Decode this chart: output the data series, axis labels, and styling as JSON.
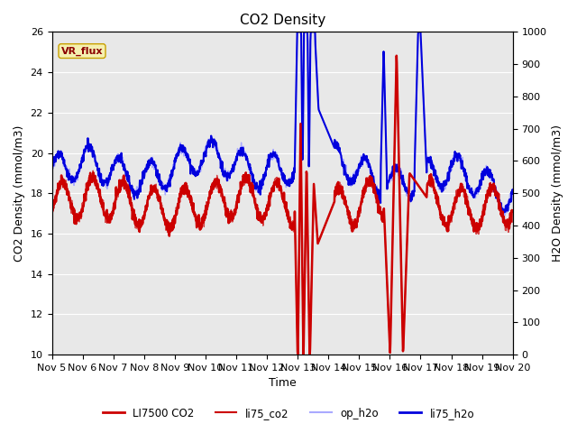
{
  "title": "CO2 Density",
  "xlabel": "Time",
  "ylabel_left": "CO2 Density (mmol/m3)",
  "ylabel_right": "H2O Density (mmol/m3)",
  "ylim_left": [
    10,
    26
  ],
  "ylim_right": [
    0,
    1000
  ],
  "yticks_left": [
    10,
    12,
    14,
    16,
    18,
    20,
    22,
    24,
    26
  ],
  "yticks_right": [
    0,
    100,
    200,
    300,
    400,
    500,
    600,
    700,
    800,
    900,
    1000
  ],
  "xtick_labels": [
    "Nov 5",
    "Nov 6",
    "Nov 7",
    "Nov 8",
    "Nov 9",
    "Nov 10",
    "Nov 11",
    "Nov 12",
    "Nov 13",
    "Nov 14",
    "Nov 15",
    "Nov 16",
    "Nov 17",
    "Nov 18",
    "Nov 19",
    "Nov 20"
  ],
  "annotation_text": "VR_flux",
  "background_color": "#e8e8e8",
  "legend_entries": [
    "LI7500 CO2",
    "li75_co2",
    "op_h2o",
    "li75_h2o"
  ],
  "co2_color1": "#cc0000",
  "co2_color2": "#cc0000",
  "h2o_color1": "#aaaaff",
  "h2o_color2": "#0000dd",
  "title_fontsize": 11,
  "label_fontsize": 9,
  "tick_fontsize": 8,
  "grid_color": "#ffffff",
  "figsize": [
    6.4,
    4.8
  ],
  "dpi": 100
}
